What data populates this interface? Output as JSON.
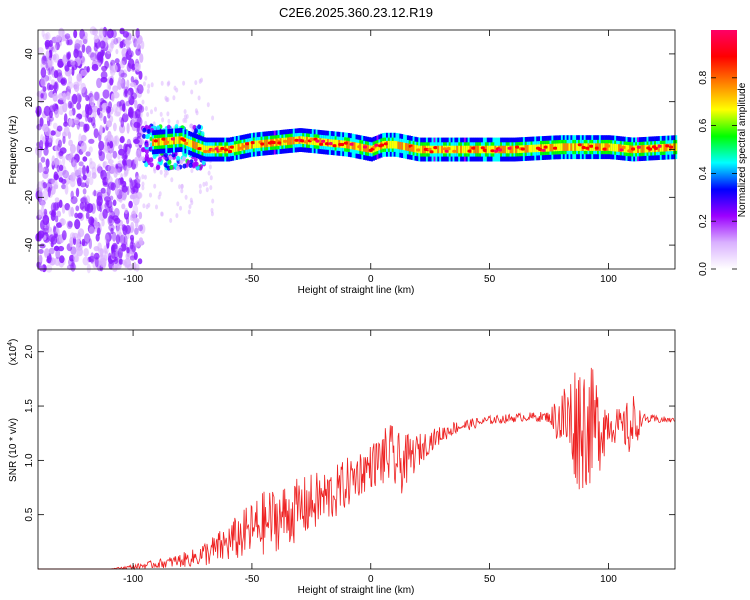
{
  "title": "C2E6.2025.360.23.12.R19",
  "chart_data": [
    {
      "type": "heatmap",
      "xlabel": "Height of straight line (km)",
      "ylabel": "Frequency (Hz)",
      "xlim": [
        -140,
        128
      ],
      "ylim": [
        -50,
        50
      ],
      "x_ticks": [
        -100,
        -50,
        0,
        50,
        100
      ],
      "y_ticks": [
        -40,
        -20,
        0,
        20,
        40
      ],
      "colorbar": {
        "label": "Normalized spectral amplitude",
        "range": [
          0.0,
          1.0
        ],
        "ticks": [
          0.0,
          0.2,
          0.4,
          0.6,
          0.8
        ],
        "colors": [
          "#ffffff",
          "#d9b0ff",
          "#9c00ff",
          "#0000ff",
          "#00ffff",
          "#00ff00",
          "#ffff00",
          "#ff8000",
          "#ff0000",
          "#ff0066"
        ]
      },
      "regions": [
        {
          "x_range": [
            -140,
            -96
          ],
          "freq_range": [
            -50,
            50
          ],
          "amplitude": 0.15,
          "note": "broadband scatter"
        },
        {
          "x_range": [
            -96,
            -70
          ],
          "freq_range": [
            -8,
            10
          ],
          "amplitude": 0.35
        },
        {
          "x_range": [
            -70,
            128
          ],
          "freq_center": 1,
          "freq_halfwidth": 3,
          "amplitude": 0.7
        }
      ],
      "trace_points": [
        {
          "x": -92,
          "f": 3
        },
        {
          "x": -80,
          "f": 4
        },
        {
          "x": -70,
          "f": 0
        },
        {
          "x": -60,
          "f": 0
        },
        {
          "x": -50,
          "f": 2
        },
        {
          "x": -40,
          "f": 3
        },
        {
          "x": -30,
          "f": 4
        },
        {
          "x": -20,
          "f": 3
        },
        {
          "x": -10,
          "f": 2
        },
        {
          "x": 0,
          "f": 0
        },
        {
          "x": 5,
          "f": 2
        },
        {
          "x": 10,
          "f": 2
        },
        {
          "x": 20,
          "f": 0
        },
        {
          "x": 40,
          "f": 0
        },
        {
          "x": 60,
          "f": 0
        },
        {
          "x": 80,
          "f": 1
        },
        {
          "x": 90,
          "f": 1
        },
        {
          "x": 100,
          "f": 1
        },
        {
          "x": 110,
          "f": 0
        },
        {
          "x": 128,
          "f": 1
        }
      ]
    },
    {
      "type": "line",
      "xlabel": "Height of straight line (km)",
      "ylabel": "SNR (10 * v/v)",
      "y_multiplier_label": "(x10",
      "y_multiplier_exp": "4",
      "y_multiplier_close": ")",
      "xlim": [
        -140,
        128
      ],
      "ylim": [
        0,
        2.2
      ],
      "x_ticks": [
        -100,
        -50,
        0,
        50,
        100
      ],
      "y_ticks": [
        0.5,
        1.0,
        1.5,
        2.0
      ],
      "y_tick_labels": [
        "0.5",
        "1.0",
        "1.5",
        "2.0"
      ],
      "color": "#ee2222",
      "envelope": [
        {
          "x": -140,
          "base": 0.0,
          "amp": 0.0
        },
        {
          "x": -110,
          "base": 0.0,
          "amp": 0.0
        },
        {
          "x": -100,
          "base": 0.02,
          "amp": 0.02
        },
        {
          "x": -85,
          "base": 0.06,
          "amp": 0.05
        },
        {
          "x": -75,
          "base": 0.1,
          "amp": 0.08
        },
        {
          "x": -65,
          "base": 0.18,
          "amp": 0.15
        },
        {
          "x": -55,
          "base": 0.3,
          "amp": 0.22
        },
        {
          "x": -45,
          "base": 0.42,
          "amp": 0.3
        },
        {
          "x": -35,
          "base": 0.5,
          "amp": 0.3
        },
        {
          "x": -25,
          "base": 0.6,
          "amp": 0.28
        },
        {
          "x": -15,
          "base": 0.7,
          "amp": 0.25
        },
        {
          "x": -5,
          "base": 0.88,
          "amp": 0.22
        },
        {
          "x": 0,
          "base": 0.95,
          "amp": 0.2
        },
        {
          "x": 8,
          "base": 1.05,
          "amp": 0.3
        },
        {
          "x": 12,
          "base": 0.95,
          "amp": 0.3
        },
        {
          "x": 18,
          "base": 1.05,
          "amp": 0.18
        },
        {
          "x": 25,
          "base": 1.18,
          "amp": 0.1
        },
        {
          "x": 35,
          "base": 1.3,
          "amp": 0.06
        },
        {
          "x": 50,
          "base": 1.37,
          "amp": 0.04
        },
        {
          "x": 65,
          "base": 1.4,
          "amp": 0.04
        },
        {
          "x": 75,
          "base": 1.4,
          "amp": 0.05
        },
        {
          "x": 80,
          "base": 1.38,
          "amp": 0.3
        },
        {
          "x": 88,
          "base": 1.35,
          "amp": 0.65
        },
        {
          "x": 95,
          "base": 1.3,
          "amp": 0.5
        },
        {
          "x": 100,
          "base": 1.35,
          "amp": 0.2
        },
        {
          "x": 106,
          "base": 1.3,
          "amp": 0.15
        },
        {
          "x": 110,
          "base": 1.3,
          "amp": 0.35
        },
        {
          "x": 114,
          "base": 1.38,
          "amp": 0.05
        },
        {
          "x": 128,
          "base": 1.37,
          "amp": 0.02
        }
      ]
    }
  ]
}
